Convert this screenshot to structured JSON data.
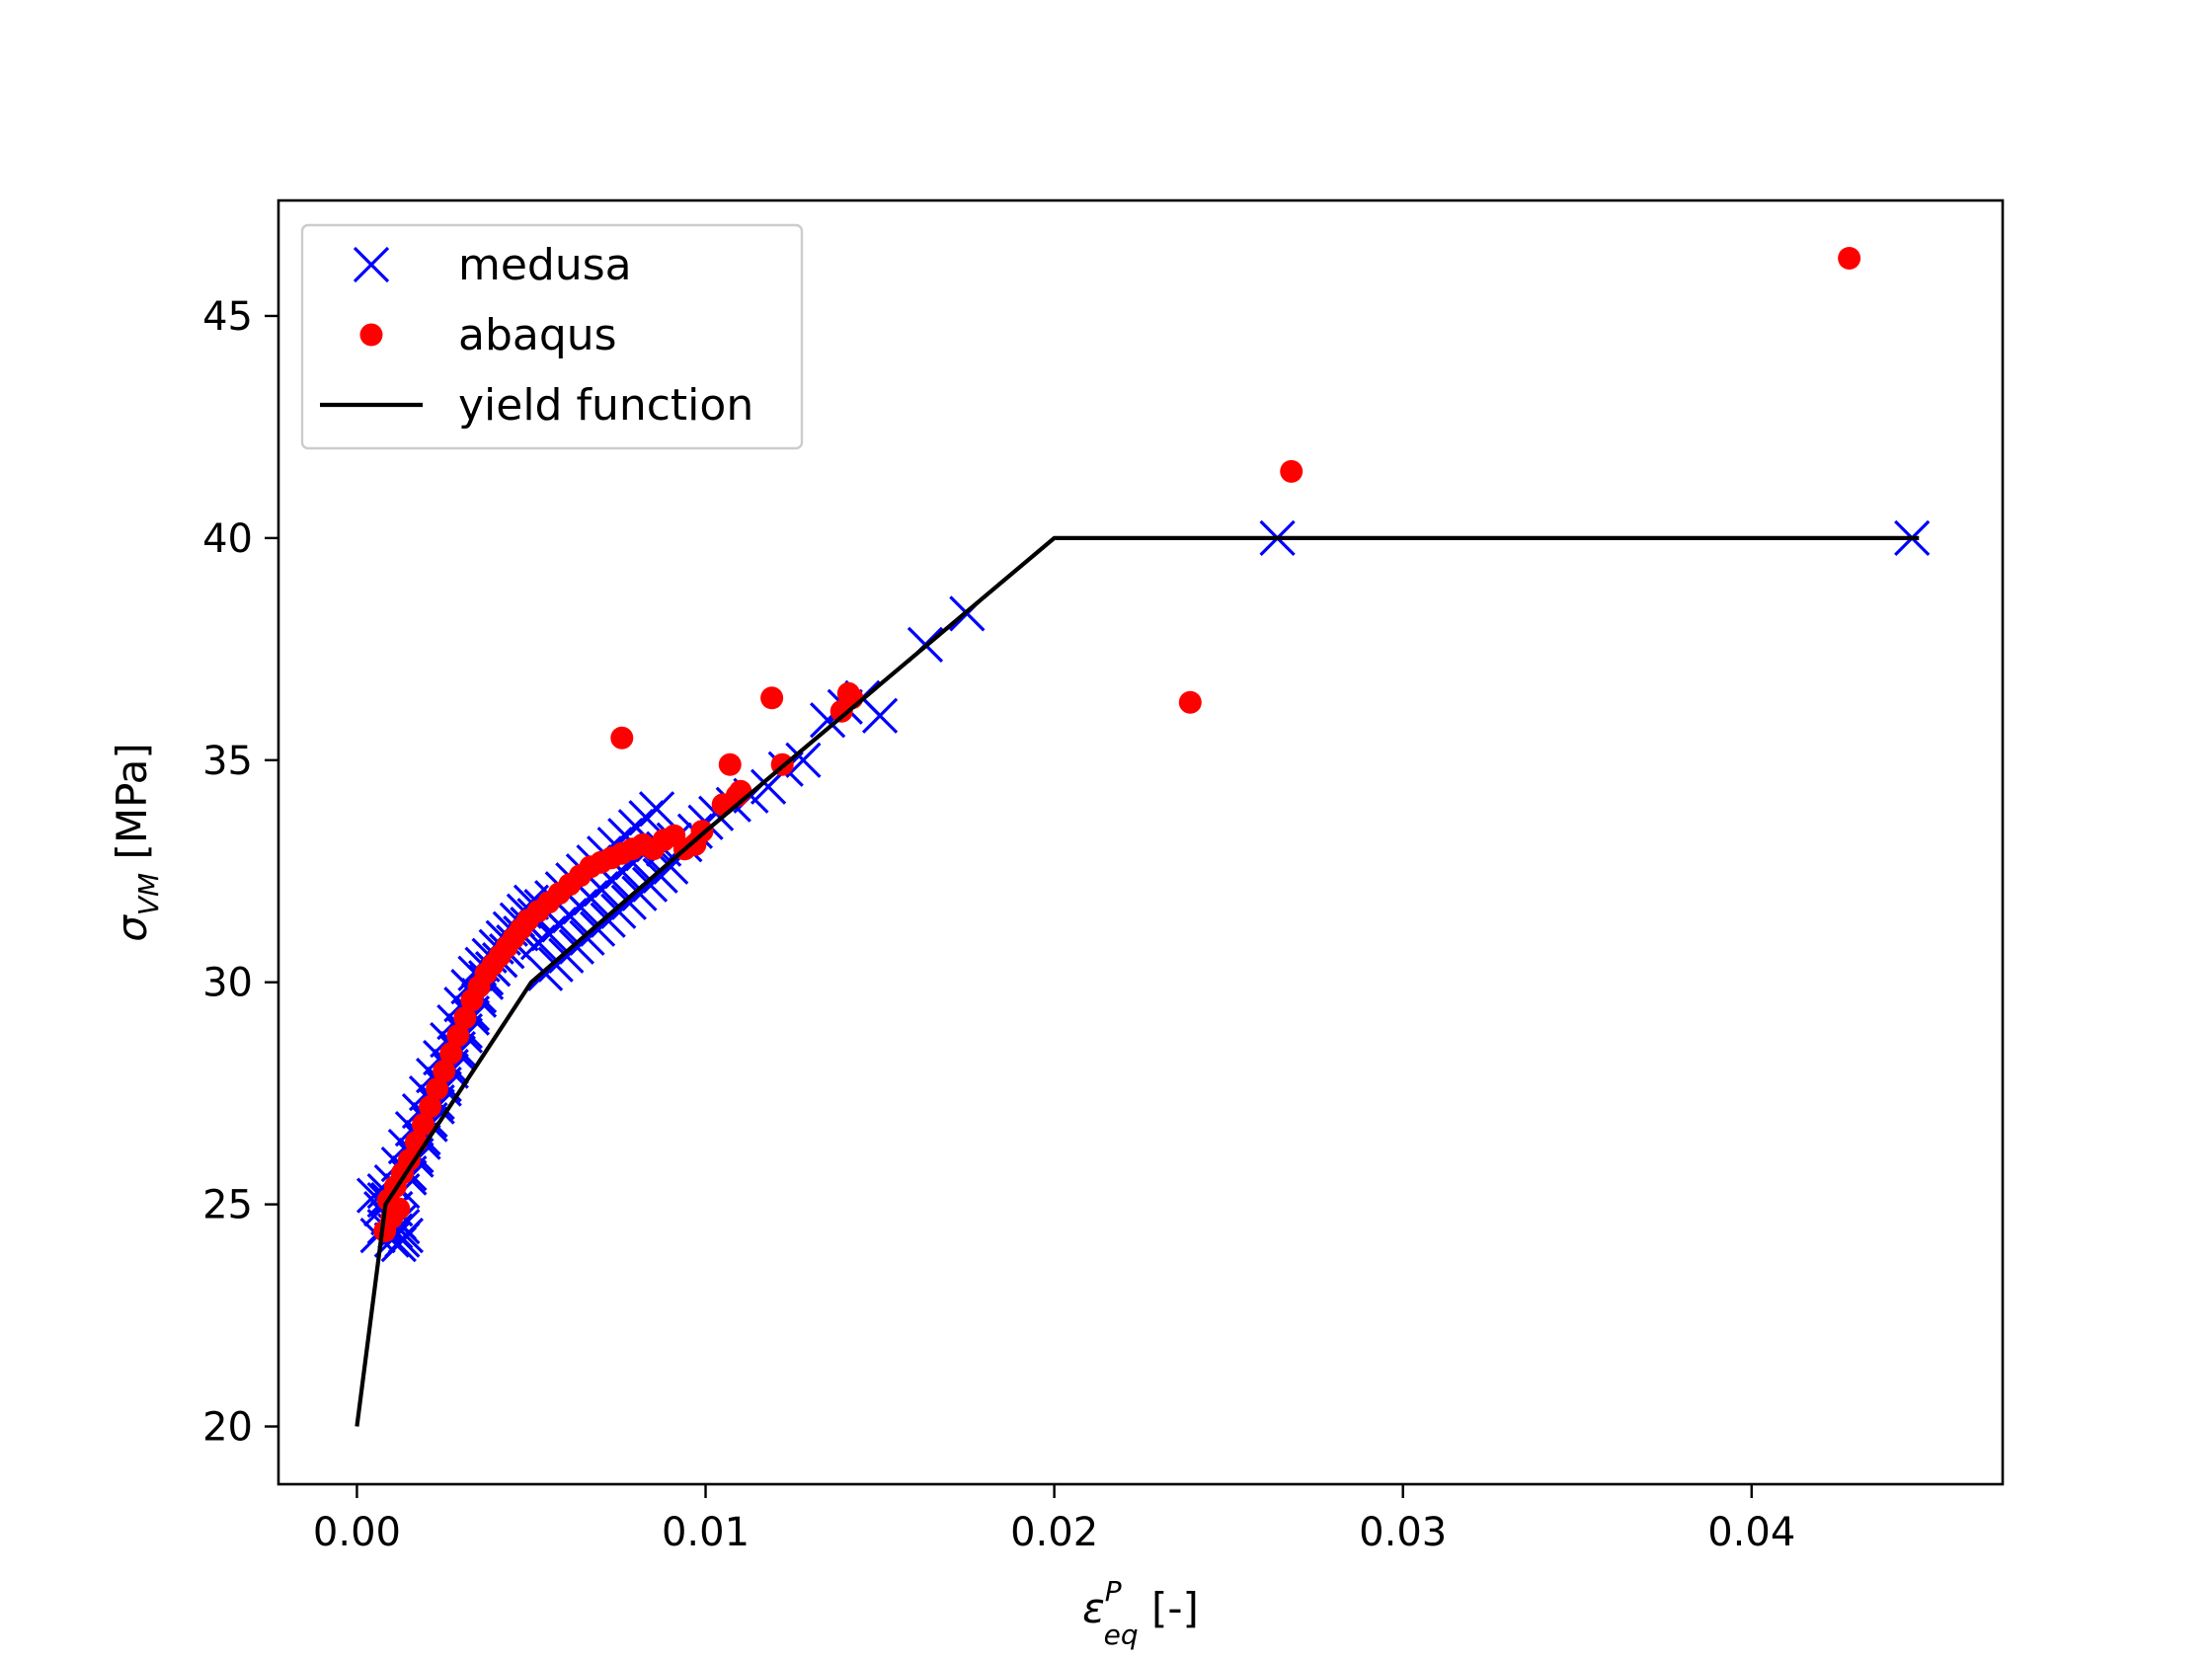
{
  "chart_data": {
    "type": "scatter",
    "title": "",
    "xlabel": "ε",
    "xlabel_sup": "P",
    "xlabel_sub": "eq",
    "xlabel_unit": " [-]",
    "ylabel": "σ",
    "ylabel_sub": "VM",
    "ylabel_unit": " [MPa]",
    "xlim": [
      -0.00225,
      0.0472
    ],
    "ylim": [
      18.7,
      47.6
    ],
    "xticks": [
      0.0,
      0.01,
      0.02,
      0.03,
      0.04
    ],
    "xtick_labels": [
      "0.00",
      "0.01",
      "0.02",
      "0.03",
      "0.04"
    ],
    "yticks": [
      20,
      25,
      30,
      35,
      40,
      45
    ],
    "ytick_labels": [
      "20",
      "25",
      "30",
      "35",
      "40",
      "45"
    ],
    "grid": false,
    "legend_position": "top-left",
    "series": [
      {
        "name": "medusa",
        "kind": "scatter",
        "marker": "x",
        "color": "#0000ff",
        "x": [
          0.0006,
          0.0008,
          0.001,
          0.0012,
          0.0007,
          0.0011,
          0.0009,
          0.0013,
          0.0005,
          0.0014,
          0.0009,
          0.0011,
          0.0013,
          0.0008,
          0.0012,
          0.0015,
          0.0017,
          0.0019,
          0.0021,
          0.0023,
          0.0025,
          0.0027,
          0.0029,
          0.0031,
          0.0033,
          0.0035,
          0.0037,
          0.0039,
          0.0041,
          0.0043,
          0.0045,
          0.0047,
          0.0049,
          0.0011,
          0.0013,
          0.0015,
          0.0017,
          0.0019,
          0.0021,
          0.0023,
          0.0025,
          0.0027,
          0.0029,
          0.0031,
          0.0033,
          0.0035,
          0.0037,
          0.0039,
          0.0041,
          0.0043,
          0.0045,
          0.0047,
          0.0049,
          0.0051,
          0.0053,
          0.0008,
          0.001,
          0.0012,
          0.0014,
          0.0016,
          0.0018,
          0.002,
          0.0022,
          0.0024,
          0.0026,
          0.0028,
          0.003,
          0.0032,
          0.0034,
          0.0036,
          0.0038,
          0.004,
          0.0042,
          0.0044,
          0.0046,
          0.0048,
          0.005,
          0.0053,
          0.0056,
          0.0059,
          0.0062,
          0.0065,
          0.0068,
          0.0071,
          0.0074,
          0.0077,
          0.008,
          0.0083,
          0.0086,
          0.0054,
          0.0057,
          0.006,
          0.0063,
          0.0066,
          0.0069,
          0.0072,
          0.0075,
          0.0078,
          0.0081,
          0.0084,
          0.0087,
          0.009,
          0.0052,
          0.0055,
          0.0058,
          0.0061,
          0.0064,
          0.0067,
          0.007,
          0.0073,
          0.0076,
          0.0079,
          0.0082,
          0.0085,
          0.0088,
          0.0091,
          0.0094,
          0.0097,
          0.01,
          0.0103,
          0.0108,
          0.0113,
          0.0118,
          0.0123,
          0.0128,
          0.0135,
          0.014,
          0.0145,
          0.015,
          0.0163,
          0.0175,
          0.0264,
          0.0446
        ],
        "y": [
          24.3,
          24.5,
          24.2,
          24.6,
          24.9,
          24.4,
          25.1,
          24.2,
          25.2,
          24.3,
          24.7,
          24.9,
          24.5,
          25.3,
          24.1,
          25.6,
          26.0,
          26.4,
          26.8,
          27.2,
          27.6,
          28.0,
          28.4,
          28.8,
          29.2,
          29.6,
          30.0,
          30.3,
          30.5,
          30.7,
          30.9,
          31.1,
          31.3,
          24.9,
          25.3,
          25.7,
          26.1,
          26.5,
          26.9,
          27.3,
          27.7,
          28.1,
          28.5,
          28.9,
          29.3,
          29.7,
          30.1,
          30.3,
          30.5,
          30.7,
          30.9,
          31.1,
          31.3,
          31.5,
          31.7,
          25.1,
          25.5,
          25.9,
          26.3,
          26.7,
          27.1,
          27.5,
          27.9,
          28.3,
          28.7,
          29.1,
          29.5,
          29.9,
          30.2,
          30.4,
          30.6,
          30.8,
          31.0,
          31.2,
          31.4,
          31.6,
          31.8,
          31.7,
          31.9,
          32.1,
          32.3,
          32.5,
          32.7,
          32.9,
          33.1,
          33.3,
          33.5,
          33.7,
          33.9,
          30.2,
          30.4,
          30.6,
          30.8,
          31.0,
          31.2,
          31.4,
          31.6,
          31.8,
          32.0,
          32.2,
          32.4,
          32.6,
          30.9,
          31.1,
          31.3,
          31.5,
          31.7,
          31.9,
          32.1,
          32.3,
          32.5,
          32.7,
          32.9,
          33.1,
          33.0,
          33.2,
          33.1,
          33.4,
          33.6,
          33.8,
          34.0,
          34.2,
          34.4,
          34.8,
          35.0,
          35.9,
          36.2,
          36.4,
          36.0,
          37.6,
          38.3,
          40.0,
          40.0
        ]
      },
      {
        "name": "abaqus",
        "kind": "scatter",
        "marker": "o",
        "color": "#ff0000",
        "x": [
          0.0008,
          0.001,
          0.0012,
          0.0009,
          0.0011,
          0.0013,
          0.0015,
          0.0017,
          0.0019,
          0.0021,
          0.0023,
          0.0025,
          0.0027,
          0.0029,
          0.0031,
          0.0033,
          0.0035,
          0.0037,
          0.0039,
          0.0041,
          0.0043,
          0.0045,
          0.0047,
          0.0049,
          0.0052,
          0.0055,
          0.0058,
          0.0061,
          0.0064,
          0.0067,
          0.007,
          0.0073,
          0.0076,
          0.0079,
          0.0082,
          0.0085,
          0.0088,
          0.0091,
          0.0094,
          0.0097,
          0.0099,
          0.0105,
          0.0107,
          0.011,
          0.0109,
          0.0119,
          0.0122,
          0.0139,
          0.0141,
          0.0142,
          0.0076,
          0.0239,
          0.0268,
          0.0428
        ],
        "y": [
          24.4,
          24.7,
          24.9,
          25.1,
          25.4,
          25.7,
          26.0,
          26.4,
          26.8,
          27.2,
          27.6,
          28.0,
          28.4,
          28.8,
          29.2,
          29.6,
          29.9,
          30.2,
          30.4,
          30.6,
          30.8,
          31.0,
          31.2,
          31.4,
          31.6,
          31.8,
          32.0,
          32.2,
          32.4,
          32.6,
          32.7,
          32.8,
          32.9,
          33.0,
          33.1,
          33.0,
          33.2,
          33.3,
          33.0,
          33.1,
          33.4,
          34.0,
          34.9,
          34.3,
          34.2,
          36.4,
          34.9,
          36.1,
          36.5,
          36.4,
          35.5,
          36.3,
          41.5,
          46.3
        ]
      },
      {
        "name": "yield function",
        "kind": "line",
        "color": "#000000",
        "x": [
          0.0,
          0.00082,
          0.005,
          0.01,
          0.02,
          0.0448
        ],
        "y": [
          20.0,
          25.0,
          30.0,
          33.4,
          40.0,
          40.0
        ]
      }
    ]
  },
  "legend": {
    "entries": [
      {
        "label": "medusa",
        "color": "#0000ff",
        "marker": "x"
      },
      {
        "label": "abaqus",
        "color": "#ff0000",
        "marker": "o"
      },
      {
        "label": "yield function",
        "color": "#000000",
        "marker": "line"
      }
    ]
  }
}
